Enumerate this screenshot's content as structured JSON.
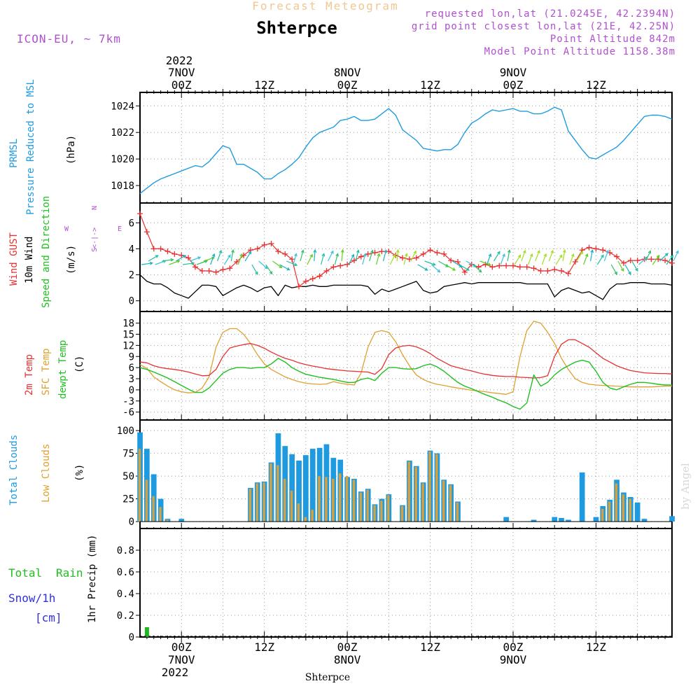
{
  "header": {
    "app_title": "Forecast Meteogram",
    "location": "Shterpce",
    "model": "ICON-EU, ~ 7km",
    "requested": "requested lon,lat (21.0245E, 42.2394N)",
    "grid_point": "grid point closest lon,lat (21E, 42.25N)",
    "point_altitude": "Point Altitude 842m",
    "model_altitude": "Model Point Altitude 1158.38m",
    "footer_location": "Shterpce",
    "credit": "by Angel"
  },
  "time_axis": {
    "top_year": "2022",
    "labels_top": [
      {
        "h": 0,
        "day": "7NOV",
        "z": "00Z"
      },
      {
        "h": 12,
        "day": "",
        "z": "12Z"
      },
      {
        "h": 24,
        "day": "8NOV",
        "z": "00Z"
      },
      {
        "h": 36,
        "day": "",
        "z": "12Z"
      },
      {
        "h": 48,
        "day": "9NOV",
        "z": "00Z"
      },
      {
        "h": 60,
        "day": "",
        "z": "12Z"
      }
    ],
    "bottom_year": "2022",
    "labels_bottom": [
      {
        "h": 0,
        "z": "00Z",
        "day": "7NOV"
      },
      {
        "h": 12,
        "z": "12Z",
        "day": ""
      },
      {
        "h": 24,
        "z": "00Z",
        "day": "8NOV"
      },
      {
        "h": 36,
        "z": "12Z",
        "day": ""
      },
      {
        "h": 48,
        "z": "00Z",
        "day": "9NOV"
      },
      {
        "h": 60,
        "z": "12Z",
        "day": ""
      }
    ],
    "hours": [
      -6,
      71
    ]
  },
  "panel_labels": {
    "pressure": [
      "PRMSL",
      "Pressure Reduced to MSL",
      "(hPa)"
    ],
    "wind": [
      "Wind GUST",
      "10m Wind",
      "Speed and Direction",
      "(m/s)"
    ],
    "compass": [
      "N",
      "<-|->",
      "W",
      "E",
      "S"
    ],
    "temp": [
      "2m Temp",
      "SFC Temp",
      "dewpt Temp",
      "(C)"
    ],
    "clouds": [
      "Total Clouds",
      "Low Clouds",
      "(%)"
    ],
    "precip": [
      "Total",
      "Rain",
      "Snow/1h",
      "[cm]",
      "1hr Precip (mm)"
    ]
  },
  "colors": {
    "pressure": "#1e9be0",
    "gust": "#e83030",
    "wind": "#000000",
    "t2m": "#e83030",
    "sfc": "#e0a030",
    "dewpt": "#20c020",
    "total_cloud": "#1e9be0",
    "low_cloud": "#d4a040",
    "rain": "#20b820",
    "purple": "#b050d0"
  },
  "chart_data": [
    {
      "type": "line",
      "title": "PRMSL",
      "ylabel": "(hPa)",
      "ylim": [
        1017,
        1024.7
      ],
      "yticks": [
        1018,
        1020,
        1022,
        1024
      ],
      "x": [
        -6,
        -5,
        -4,
        -3,
        -2,
        -1,
        0,
        1,
        2,
        3,
        4,
        5,
        6,
        7,
        8,
        9,
        10,
        11,
        12,
        13,
        14,
        15,
        16,
        17,
        18,
        19,
        20,
        21,
        22,
        23,
        24,
        25,
        26,
        27,
        28,
        29,
        30,
        31,
        32,
        33,
        34,
        35,
        36,
        37,
        38,
        39,
        40,
        41,
        42,
        43,
        44,
        45,
        46,
        47,
        48,
        49,
        50,
        51,
        52,
        53,
        54,
        55,
        56,
        57,
        58,
        59,
        60,
        61,
        62,
        63,
        64,
        65,
        66,
        67,
        68,
        69,
        70,
        71
      ],
      "series": [
        {
          "values": [
            1017.4,
            1017.8,
            1018.2,
            1018.5,
            1018.7,
            1018.9,
            1019.1,
            1019.3,
            1019.5,
            1019.4,
            1019.8,
            1020.4,
            1021.0,
            1020.8,
            1019.6,
            1019.6,
            1019.3,
            1019.0,
            1018.5,
            1018.5,
            1018.9,
            1019.2,
            1019.6,
            1020.1,
            1020.9,
            1021.6,
            1022.0,
            1022.2,
            1022.4,
            1022.9,
            1023.0,
            1023.2,
            1022.9,
            1022.9,
            1023.0,
            1023.4,
            1023.8,
            1023.3,
            1022.2,
            1021.8,
            1021.4,
            1020.8,
            1020.7,
            1020.6,
            1020.7,
            1020.7,
            1021.1,
            1022.0,
            1022.7,
            1023.0,
            1023.4,
            1023.7,
            1023.6,
            1023.7,
            1023.8,
            1023.6,
            1023.6,
            1023.4,
            1023.4,
            1023.6,
            1023.9,
            1023.7,
            1022.1,
            1021.4,
            1020.7,
            1020.1,
            1020.0,
            1020.3,
            1020.6,
            1020.9,
            1021.4,
            1022.0,
            1022.6,
            1023.2,
            1023.3,
            1023.3,
            1023.2,
            1023.0
          ]
        }
      ]
    },
    {
      "type": "line",
      "title": "Wind GUST / 10m Wind Speed and Direction",
      "ylabel": "(m/s)",
      "ylim": [
        -0.5,
        7.2
      ],
      "yticks": [
        0,
        2,
        4,
        6
      ],
      "x": [
        -6,
        -5,
        -4,
        -3,
        -2,
        -1,
        0,
        1,
        2,
        3,
        4,
        5,
        6,
        7,
        8,
        9,
        10,
        11,
        12,
        13,
        14,
        15,
        16,
        17,
        18,
        19,
        20,
        21,
        22,
        23,
        24,
        25,
        26,
        27,
        28,
        29,
        30,
        31,
        32,
        33,
        34,
        35,
        36,
        37,
        38,
        39,
        40,
        41,
        42,
        43,
        44,
        45,
        46,
        47,
        48,
        49,
        50,
        51,
        52,
        53,
        54,
        55,
        56,
        57,
        58,
        59,
        60,
        61,
        62,
        63,
        64,
        65,
        66,
        67,
        68,
        69,
        70,
        71
      ],
      "series": [
        {
          "name": "Wind GUST",
          "values": [
            6.7,
            5.3,
            4.0,
            4.0,
            3.8,
            3.6,
            3.5,
            3.3,
            2.6,
            2.3,
            2.3,
            2.2,
            2.4,
            2.5,
            3.0,
            3.5,
            3.9,
            4.0,
            4.3,
            4.4,
            3.8,
            3.6,
            3.2,
            1.1,
            1.5,
            1.7,
            1.9,
            2.3,
            2.6,
            2.7,
            2.8,
            3.1,
            3.4,
            3.6,
            3.7,
            3.8,
            3.8,
            3.5,
            3.3,
            3.2,
            3.3,
            3.6,
            3.9,
            3.7,
            3.6,
            3.1,
            3.0,
            2.2,
            2.8,
            2.6,
            2.8,
            2.6,
            2.7,
            2.7,
            2.7,
            2.6,
            2.6,
            2.5,
            2.3,
            2.3,
            2.4,
            2.3,
            2.1,
            3.0,
            3.9,
            4.1,
            4.0,
            3.9,
            3.7,
            3.4,
            2.9,
            3.1,
            3.1,
            3.2,
            3.2,
            3.2,
            3.1,
            2.9
          ]
        },
        {
          "name": "10m Wind",
          "values": [
            2.0,
            1.5,
            1.3,
            1.3,
            1.0,
            0.6,
            0.4,
            0.2,
            0.7,
            1.2,
            1.2,
            1.1,
            0.4,
            0.7,
            1.0,
            1.2,
            1.0,
            0.7,
            1.0,
            1.1,
            0.4,
            1.2,
            1.0,
            1.1,
            1.1,
            1.2,
            1.1,
            1.1,
            1.2,
            1.2,
            1.2,
            1.2,
            1.2,
            1.1,
            0.5,
            0.9,
            0.7,
            0.9,
            1.1,
            1.3,
            1.5,
            0.8,
            0.6,
            0.7,
            1.1,
            1.2,
            1.3,
            1.4,
            1.3,
            1.4,
            1.4,
            1.4,
            1.4,
            1.4,
            1.4,
            1.4,
            1.3,
            1.3,
            1.3,
            1.3,
            0.3,
            0.8,
            1.0,
            0.8,
            0.6,
            0.7,
            0.4,
            0.1,
            0.9,
            1.3,
            1.3,
            1.4,
            1.4,
            1.4,
            1.3,
            1.3,
            1.3,
            1.2
          ]
        }
      ]
    },
    {
      "type": "line",
      "title": "2m Temp / SFC Temp / dewpt Temp",
      "ylabel": "(C)",
      "ylim": [
        -7,
        20
      ],
      "yticks": [
        -6,
        -3,
        0,
        3,
        6,
        9,
        12,
        15,
        18
      ],
      "x": [
        -6,
        -5,
        -4,
        -3,
        -2,
        -1,
        0,
        1,
        2,
        3,
        4,
        5,
        6,
        7,
        8,
        9,
        10,
        11,
        12,
        13,
        14,
        15,
        16,
        17,
        18,
        19,
        20,
        21,
        22,
        23,
        24,
        25,
        26,
        27,
        28,
        29,
        30,
        31,
        32,
        33,
        34,
        35,
        36,
        37,
        38,
        39,
        40,
        41,
        42,
        43,
        44,
        45,
        46,
        47,
        48,
        49,
        50,
        51,
        52,
        53,
        54,
        55,
        56,
        57,
        58,
        59,
        60,
        61,
        62,
        63,
        64,
        65,
        66,
        67,
        68,
        69,
        70,
        71
      ],
      "series": [
        {
          "name": "2m Temp",
          "values": [
            7.5,
            7.3,
            6.5,
            6.0,
            5.7,
            5.5,
            5.2,
            4.8,
            4.3,
            3.8,
            3.9,
            5.5,
            9.0,
            11.3,
            11.8,
            12.2,
            12.5,
            12.0,
            11.2,
            10.2,
            9.3,
            8.5,
            8.0,
            7.3,
            6.8,
            6.4,
            6.1,
            5.7,
            5.5,
            5.3,
            5.1,
            5.0,
            4.9,
            4.8,
            4.2,
            5.8,
            9.5,
            11.3,
            11.8,
            12.0,
            11.6,
            10.8,
            9.8,
            8.5,
            7.5,
            6.5,
            6.0,
            5.5,
            5.1,
            4.6,
            4.2,
            3.9,
            3.7,
            3.6,
            3.6,
            3.4,
            3.3,
            3.2,
            3.3,
            3.8,
            9.0,
            12.3,
            13.5,
            13.5,
            12.5,
            11.5,
            10.0,
            8.5,
            7.5,
            6.5,
            5.8,
            5.2,
            4.9,
            4.6,
            4.5,
            4.4,
            4.4,
            4.3
          ]
        },
        {
          "name": "SFC Temp",
          "values": [
            6.8,
            5.8,
            3.5,
            2.2,
            1.0,
            0.0,
            -0.5,
            -0.8,
            -0.7,
            0.5,
            3.5,
            11.5,
            15.5,
            16.5,
            16.5,
            15.0,
            12.5,
            9.5,
            7.0,
            5.5,
            4.5,
            3.5,
            2.8,
            2.2,
            1.8,
            1.6,
            1.5,
            1.6,
            2.2,
            1.8,
            1.5,
            1.3,
            4.5,
            11.5,
            15.5,
            16.0,
            15.5,
            13.0,
            9.5,
            6.5,
            4.0,
            2.8,
            2.0,
            1.5,
            1.2,
            0.8,
            0.5,
            0.2,
            -0.1,
            -0.3,
            -0.5,
            -0.8,
            -1.0,
            -1.2,
            -0.5,
            9.0,
            16.0,
            18.5,
            18.0,
            15.5,
            12.5,
            8.5,
            5.5,
            3.0,
            2.0,
            1.5,
            1.3,
            1.2,
            1.1,
            1.0,
            0.9,
            0.8,
            0.8,
            0.8,
            0.8,
            0.9,
            1.0,
            1.0
          ]
        },
        {
          "name": "dewpt Temp",
          "values": [
            6.0,
            5.5,
            4.8,
            4.0,
            3.2,
            2.2,
            1.2,
            0.2,
            -0.7,
            -0.7,
            0.5,
            2.5,
            4.5,
            5.5,
            6.0,
            6.0,
            5.8,
            6.0,
            6.0,
            7.0,
            8.5,
            7.5,
            6.0,
            5.0,
            4.2,
            3.8,
            3.4,
            3.1,
            2.8,
            2.4,
            2.0,
            2.0,
            2.8,
            3.2,
            2.5,
            4.5,
            6.0,
            6.0,
            5.7,
            5.6,
            5.7,
            6.5,
            7.0,
            6.2,
            5.0,
            3.5,
            2.0,
            1.0,
            0.3,
            -0.5,
            -1.3,
            -2.0,
            -2.8,
            -3.5,
            -4.5,
            -5.2,
            -3.5,
            4.0,
            1.0,
            2.0,
            4.0,
            5.5,
            6.5,
            7.5,
            8.0,
            7.5,
            5.0,
            2.0,
            0.5,
            0.0,
            0.8,
            1.5,
            2.0,
            2.0,
            1.8,
            1.5,
            1.3,
            1.3
          ]
        }
      ]
    },
    {
      "type": "bar",
      "title": "Total Clouds / Low Clouds",
      "ylabel": "(%)",
      "ylim": [
        -3,
        107
      ],
      "yticks": [
        0,
        25,
        50,
        75,
        100
      ],
      "x": [
        -6,
        -5,
        -4,
        -3,
        -2,
        -1,
        0,
        1,
        2,
        3,
        4,
        5,
        6,
        7,
        8,
        9,
        10,
        11,
        12,
        13,
        14,
        15,
        16,
        17,
        18,
        19,
        20,
        21,
        22,
        23,
        24,
        25,
        26,
        27,
        28,
        29,
        30,
        31,
        32,
        33,
        34,
        35,
        36,
        37,
        38,
        39,
        40,
        41,
        42,
        43,
        44,
        45,
        46,
        47,
        48,
        49,
        50,
        51,
        52,
        53,
        54,
        55,
        56,
        57,
        58,
        59,
        60,
        61,
        62,
        63,
        64,
        65,
        66,
        67,
        68,
        69,
        70,
        71
      ],
      "series": [
        {
          "name": "Total Clouds",
          "values": [
            98,
            80,
            52,
            25,
            3,
            0,
            3,
            0,
            0,
            0,
            0,
            0,
            0,
            0,
            0,
            0,
            37,
            43,
            44,
            65,
            97,
            83,
            74,
            67,
            73,
            80,
            81,
            85,
            70,
            68,
            49,
            47,
            33,
            36,
            19,
            25,
            30,
            0,
            18,
            67,
            61,
            43,
            78,
            75,
            46,
            41,
            22,
            0,
            0,
            0,
            0,
            0,
            0,
            5,
            0,
            0,
            0,
            2,
            0,
            0,
            5,
            4,
            2,
            0,
            54,
            0,
            5,
            17,
            24,
            46,
            32,
            27,
            21,
            3,
            0,
            0,
            0,
            6
          ]
        },
        {
          "name": "Low Clouds",
          "values": [
            80,
            46,
            28,
            16,
            2,
            0,
            0,
            0,
            0,
            0,
            0,
            0,
            0,
            0,
            0,
            0,
            36,
            42,
            43,
            64,
            62,
            47,
            34,
            20,
            5,
            13,
            50,
            49,
            47,
            53,
            50,
            46,
            32,
            35,
            18,
            23,
            29,
            0,
            17,
            66,
            60,
            42,
            77,
            74,
            45,
            40,
            21,
            0,
            0,
            0,
            0,
            0,
            0,
            0,
            0,
            0,
            0,
            0,
            0,
            0,
            0,
            0,
            0,
            0,
            0,
            0,
            0,
            14,
            22,
            42,
            30,
            25,
            0,
            0,
            0,
            0,
            0,
            0
          ]
        }
      ]
    },
    {
      "type": "bar",
      "title": "1hr Precip (mm)",
      "ylabel": "1hr Precip (mm)",
      "ylim": [
        0,
        1.0
      ],
      "yticks": [
        0,
        0.2,
        0.4,
        0.6,
        0.8
      ],
      "x": [
        -5
      ],
      "series": [
        {
          "name": "Total Rain",
          "values": [
            0.09
          ]
        }
      ]
    }
  ]
}
